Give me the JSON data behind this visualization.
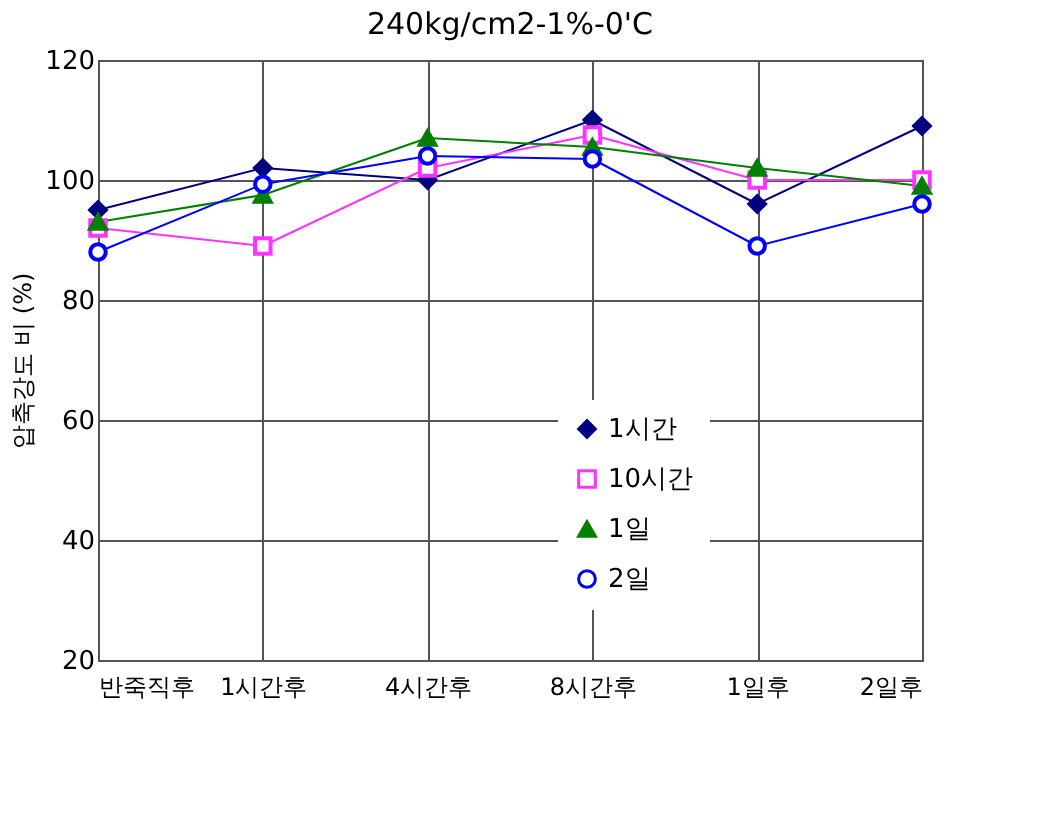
{
  "chart_data": {
    "type": "line",
    "title": "240kg/cm2-1%-0'C",
    "ylabel": "압축강도 비 (%)",
    "categories": [
      "반죽직후",
      "1시간후",
      "4시간후",
      "8시간후",
      "1일후",
      "2일후"
    ],
    "series": [
      {
        "name": "1시간",
        "color": "#000080",
        "marker": "diamond",
        "values": [
          95,
          102,
          100,
          110,
          96,
          109
        ]
      },
      {
        "name": "10시간",
        "color": "#ff33ff",
        "marker": "square",
        "values": [
          92,
          89,
          102,
          107.5,
          100,
          100
        ]
      },
      {
        "name": "1일",
        "color": "#008000",
        "marker": "triangle",
        "values": [
          93,
          97.5,
          107,
          105.5,
          102,
          99
        ]
      },
      {
        "name": "2일",
        "color": "#0000ff",
        "marker": "circle",
        "values": [
          88,
          99.3,
          104,
          103.5,
          89,
          96
        ]
      }
    ],
    "ylim": [
      20,
      120
    ],
    "yticks": [
      20,
      40,
      60,
      80,
      100,
      120
    ],
    "grid": true,
    "legend": "right",
    "line_style": "solid"
  }
}
